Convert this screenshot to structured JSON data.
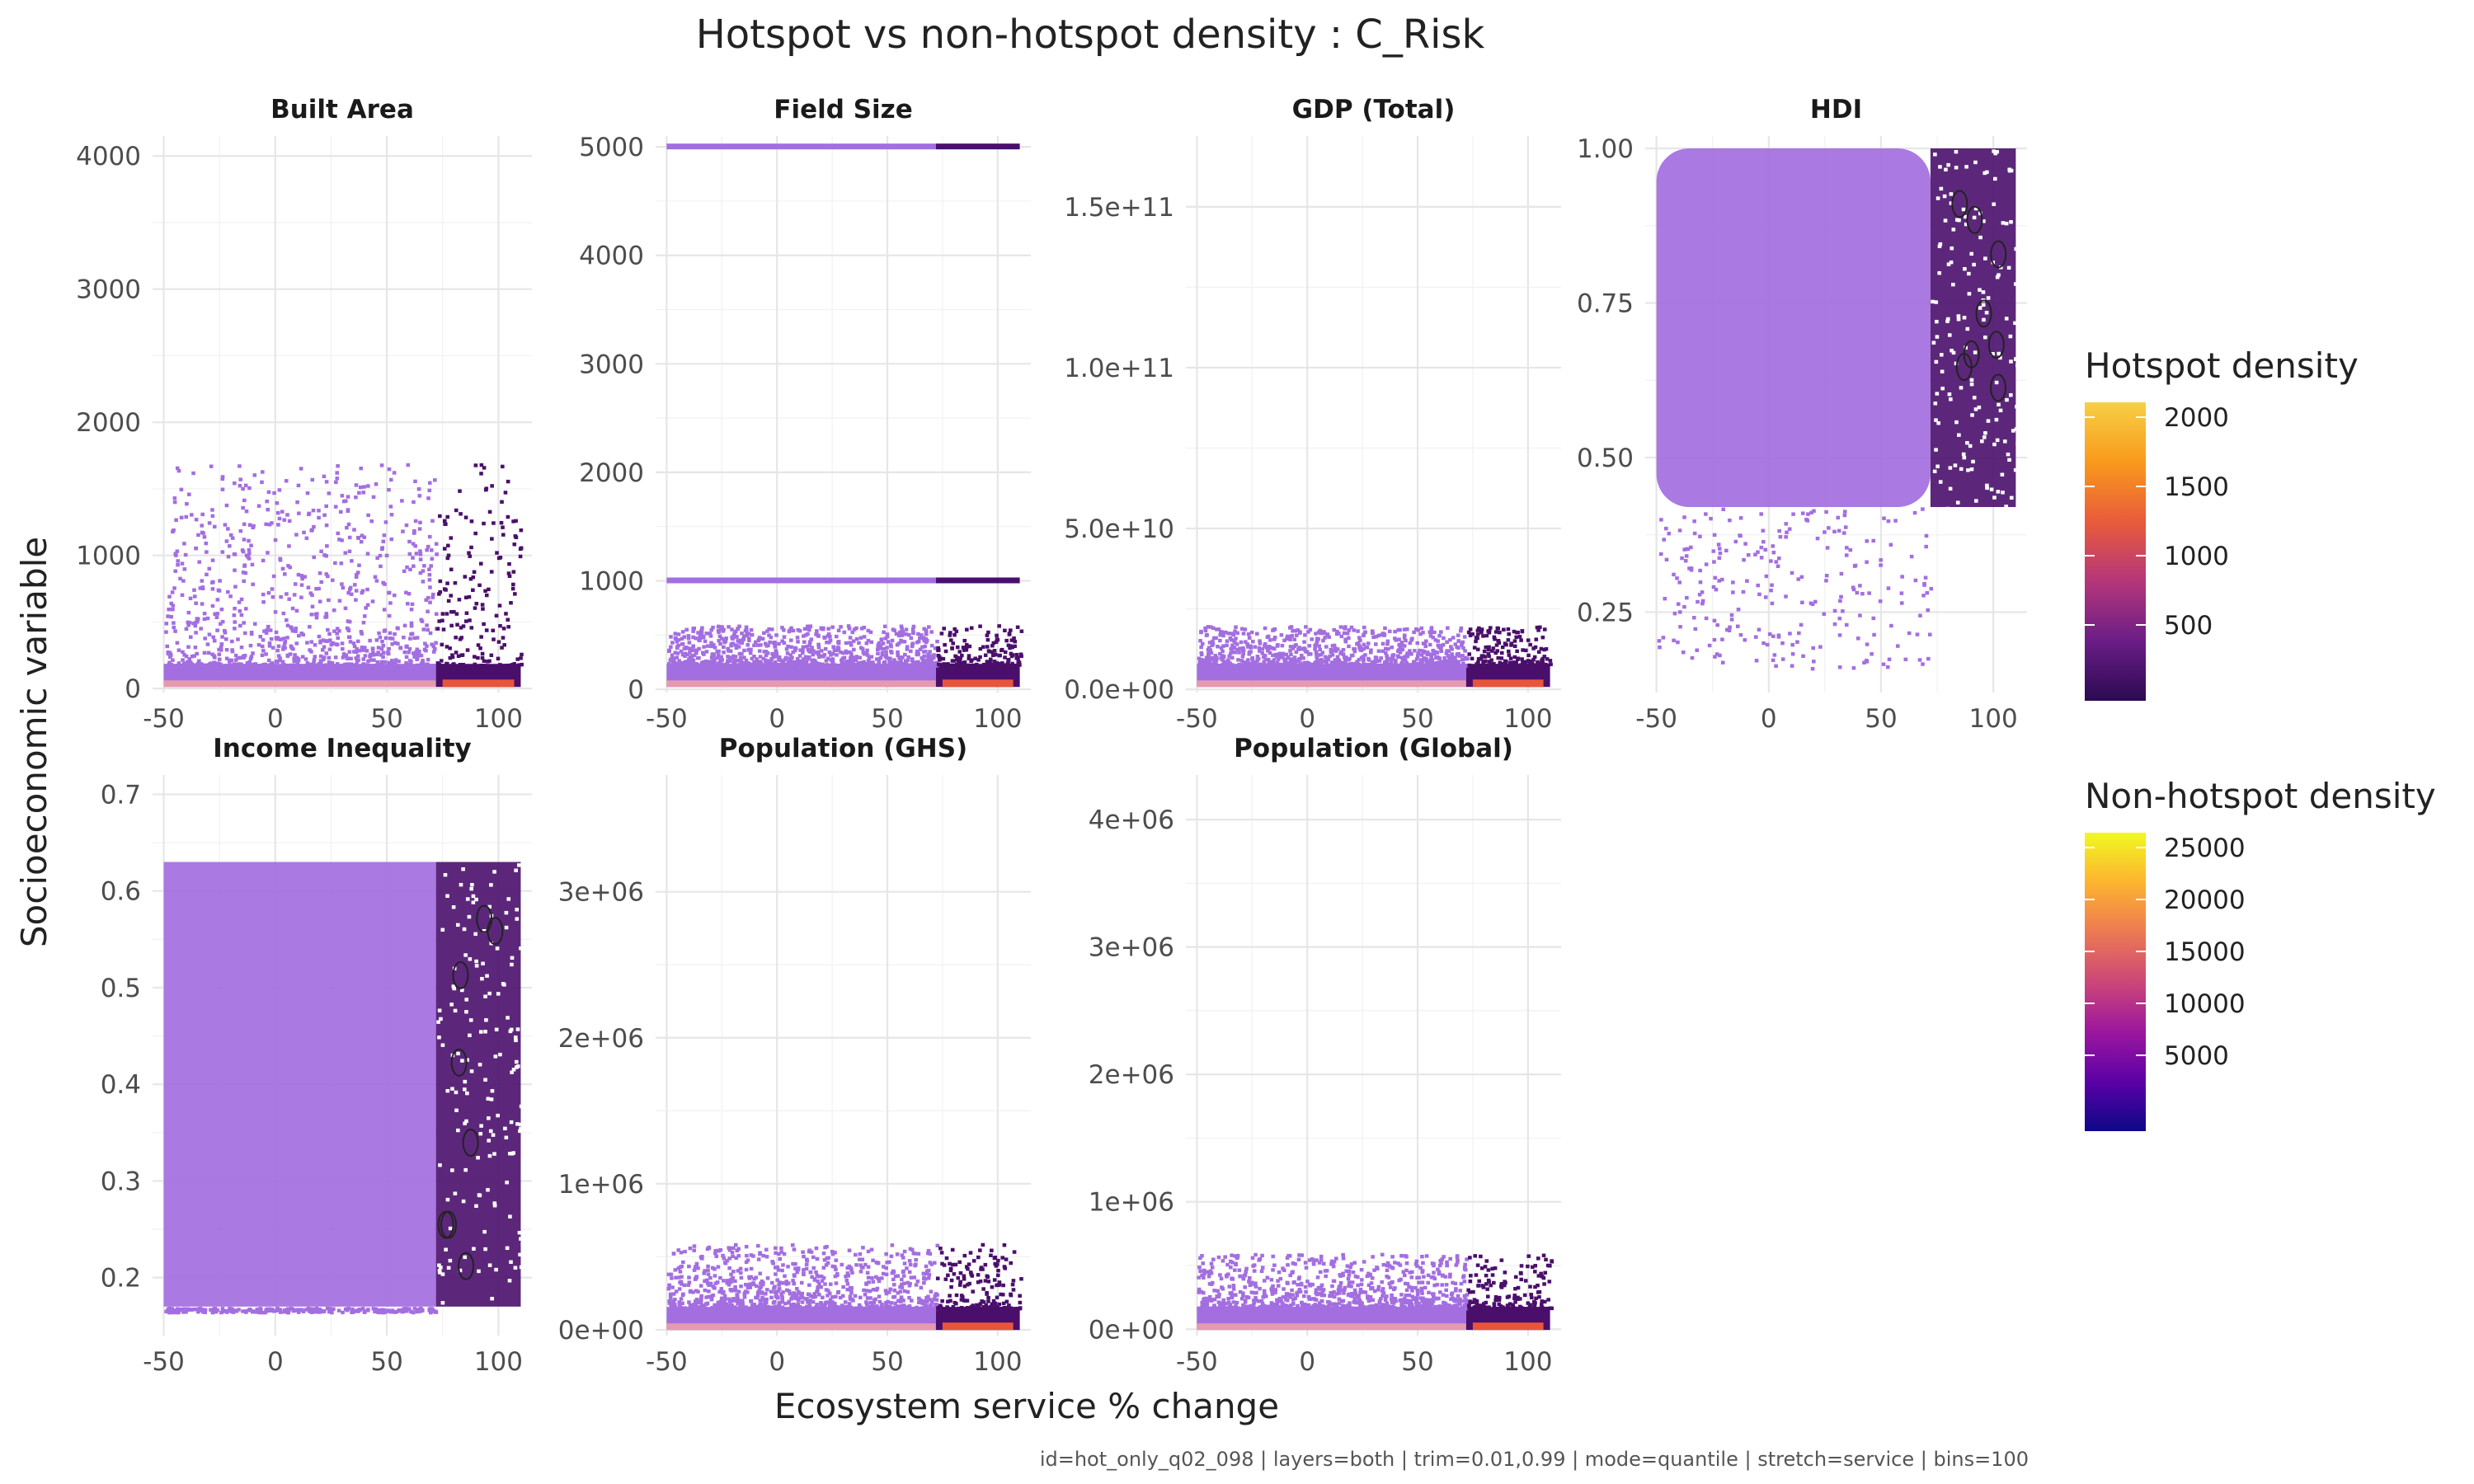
{
  "title": "Hotspot vs non-hotspot density : C_Risk",
  "xlabel": "Ecosystem service % change",
  "ylabel": "Socioeconomic variable",
  "caption": "id=hot_only_q02_098 | layers=both | trim=0.01,0.99 | mode=quantile | stretch=service | bins=100",
  "colors": {
    "nonhot_scale": [
      "#0d0887",
      "#5c01a6",
      "#9c179e",
      "#cc4778",
      "#ed7953",
      "#fdb42f",
      "#f0f921"
    ],
    "hot_scale": [
      "#2b0a52",
      "#6b1d86",
      "#b5367a",
      "#e85b3a",
      "#f99a1c",
      "#f6d045"
    ],
    "base_tile": "#a36ee0",
    "hot_tile": "#4a0f6b"
  },
  "legend": {
    "hotspot": {
      "title": "Hotspot density",
      "ticks": [
        "2000",
        "1500",
        "1000",
        "500"
      ]
    },
    "nonhotspot": {
      "title": "Non-hotspot density",
      "ticks": [
        "25000",
        "20000",
        "15000",
        "10000",
        "5000"
      ]
    }
  },
  "chart_data": [
    {
      "type": "heatmap",
      "title": "Built Area",
      "xlim": [
        -55,
        115
      ],
      "xticks": [
        "-50",
        "0",
        "50",
        "100"
      ],
      "xtick_values": [
        -50,
        0,
        50,
        100
      ],
      "ylim": [
        -30,
        4150
      ],
      "yticks": [
        "0",
        "1000",
        "2000",
        "3000",
        "4000"
      ],
      "ytick_values": [
        0,
        1000,
        2000,
        3000,
        4000
      ],
      "hotspot_x_min": 72,
      "bulk_y_max": 1700,
      "spike_y": []
    },
    {
      "type": "heatmap",
      "title": "Field Size",
      "xlim": [
        -55,
        115
      ],
      "xticks": [
        "-50",
        "0",
        "50",
        "100"
      ],
      "xtick_values": [
        -50,
        0,
        50,
        100
      ],
      "ylim": [
        -30,
        5100
      ],
      "yticks": [
        "0",
        "1000",
        "2000",
        "3000",
        "4000",
        "5000"
      ],
      "ytick_values": [
        0,
        1000,
        2000,
        3000,
        4000,
        5000
      ],
      "hotspot_x_min": 72,
      "bulk_y_max": 600,
      "spike_y": [
        5000,
        1000
      ]
    },
    {
      "type": "heatmap",
      "title": "GDP (Total)",
      "xlim": [
        -55,
        115
      ],
      "xticks": [
        "-50",
        "0",
        "50",
        "100"
      ],
      "xtick_values": [
        -50,
        0,
        50,
        100
      ],
      "ylim": [
        -1000000000.0,
        172000000000.0
      ],
      "yticks": [
        "0.0e+00",
        "5.0e+10",
        "1.0e+11",
        "1.5e+11"
      ],
      "ytick_values": [
        0,
        50000000000.0,
        100000000000.0,
        150000000000.0
      ],
      "hotspot_x_min": 72,
      "bulk_y_max": 20000000000.0,
      "spike_y": []
    },
    {
      "type": "heatmap",
      "title": "HDI",
      "xlim": [
        -55,
        115
      ],
      "xticks": [
        "-50",
        "0",
        "50",
        "100"
      ],
      "xtick_values": [
        -50,
        0,
        50,
        100
      ],
      "ylim": [
        0.12,
        1.02
      ],
      "yticks": [
        "0.25",
        "0.50",
        "0.75",
        "1.00"
      ],
      "ytick_values": [
        0.25,
        0.5,
        0.75,
        1.0
      ],
      "hotspot_x_min": 72,
      "bulk_y_max": 1.0,
      "spike_y": []
    },
    {
      "type": "heatmap",
      "title": "Income Inequality",
      "xlim": [
        -55,
        115
      ],
      "xticks": [
        "-50",
        "0",
        "50",
        "100"
      ],
      "xtick_values": [
        -50,
        0,
        50,
        100
      ],
      "ylim": [
        0.14,
        0.72
      ],
      "yticks": [
        "0.2",
        "0.3",
        "0.4",
        "0.5",
        "0.6",
        "0.7"
      ],
      "ytick_values": [
        0.2,
        0.3,
        0.4,
        0.5,
        0.6,
        0.7
      ],
      "hotspot_x_min": 72,
      "bulk_y_max": 0.65,
      "spike_y": []
    },
    {
      "type": "heatmap",
      "title": "Population (GHS)",
      "xlim": [
        -55,
        115
      ],
      "xticks": [
        "-50",
        "0",
        "50",
        "100"
      ],
      "xtick_values": [
        -50,
        0,
        50,
        100
      ],
      "ylim": [
        -40000.0,
        3800000.0
      ],
      "yticks": [
        "0e+00",
        "1e+06",
        "2e+06",
        "3e+06"
      ],
      "ytick_values": [
        0,
        1000000.0,
        2000000.0,
        3000000.0
      ],
      "hotspot_x_min": 72,
      "bulk_y_max": 600000.0,
      "spike_y": []
    },
    {
      "type": "heatmap",
      "title": "Population (Global)",
      "xlim": [
        -55,
        115
      ],
      "xticks": [
        "-50",
        "0",
        "50",
        "100"
      ],
      "xtick_values": [
        -50,
        0,
        50,
        100
      ],
      "ylim": [
        -50000.0,
        4350000.0
      ],
      "yticks": [
        "0e+00",
        "1e+06",
        "2e+06",
        "3e+06",
        "4e+06"
      ],
      "ytick_values": [
        0,
        1000000.0,
        2000000.0,
        3000000.0,
        4000000.0
      ],
      "hotspot_x_min": 72,
      "bulk_y_max": 600000.0,
      "spike_y": []
    }
  ]
}
